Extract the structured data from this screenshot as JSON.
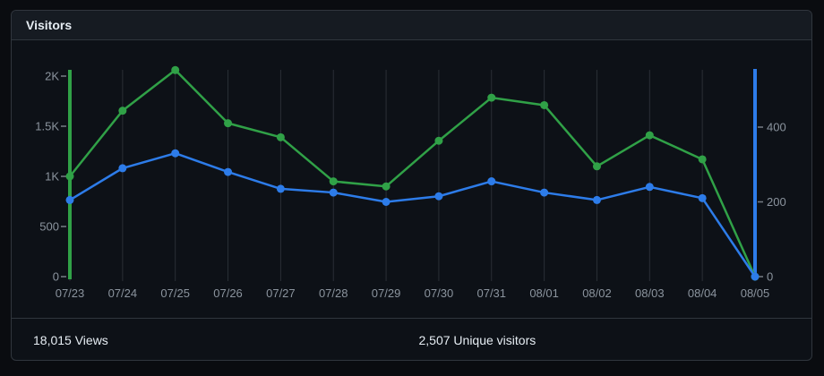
{
  "card": {
    "title": "Visitors",
    "footer": {
      "views": "18,015 Views",
      "unique": "2,507 Unique visitors"
    }
  },
  "colors": {
    "views_line": "#30a147",
    "unique_line": "#2d7ce9",
    "grid": "#2a2f36",
    "axis_text": "#8b949e",
    "tick_dash": "#767d86",
    "card_background": "#0d1117",
    "header_background": "#161b22",
    "border": "#30363d"
  },
  "chart_data": {
    "type": "line",
    "title": "Visitors",
    "x": [
      "07/23",
      "07/24",
      "07/25",
      "07/26",
      "07/27",
      "07/28",
      "07/29",
      "07/30",
      "07/31",
      "08/01",
      "08/02",
      "08/03",
      "08/04",
      "08/05"
    ],
    "series": [
      {
        "name": "Views",
        "axis": "left",
        "color": "#30a147",
        "values": [
          1000,
          1655,
          2060,
          1530,
          1390,
          950,
          900,
          1355,
          1785,
          1710,
          1100,
          1410,
          1170,
          0
        ]
      },
      {
        "name": "Unique visitors",
        "axis": "right",
        "color": "#2d7ce9",
        "values": [
          205,
          290,
          330,
          280,
          235,
          225,
          200,
          215,
          255,
          225,
          205,
          240,
          210,
          0
        ]
      }
    ],
    "left_axis": {
      "side": "left",
      "ticks": [
        {
          "label": "0",
          "value": 0
        },
        {
          "label": "500",
          "value": 500
        },
        {
          "label": "1K",
          "value": 1000
        },
        {
          "label": "1.5K",
          "value": 1500
        },
        {
          "label": "2K",
          "value": 2000
        }
      ],
      "range": [
        0,
        2062
      ]
    },
    "right_axis": {
      "side": "right",
      "ticks": [
        {
          "label": "0",
          "value": 0
        },
        {
          "label": "200",
          "value": 200
        },
        {
          "label": "400",
          "value": 400
        }
      ],
      "range": [
        0,
        556
      ]
    },
    "grid": "vertical",
    "legend": "none",
    "totals": {
      "views": "18,015",
      "unique_visitors": "2,507"
    }
  }
}
